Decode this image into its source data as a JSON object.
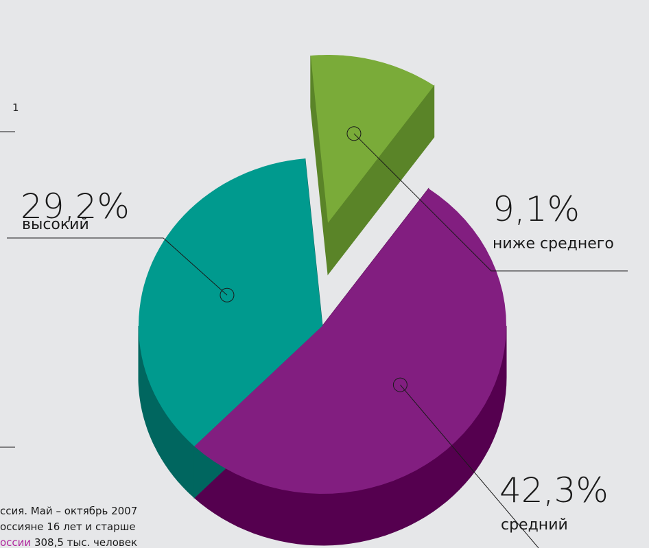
{
  "chart_data": {
    "type": "pie",
    "categories": [
      "высокий",
      "ниже среднего",
      "средний"
    ],
    "values": [
      29.2,
      9.1,
      42.3
    ],
    "value_labels": [
      "29,2%",
      "9,1%",
      "42,3%"
    ],
    "colors": [
      "#009a8e",
      "#7aab39",
      "#821e80"
    ],
    "side_colors": [
      "#00665f",
      "#5a8428",
      "#55004f"
    ],
    "exploded": [
      false,
      true,
      false
    ]
  },
  "fragments": {
    "top": "1",
    "notes": [
      "ссия. Май – октябрь 2007",
      "оссияне 16 лет и старше"
    ],
    "note_last": {
      "highlight": "оссии",
      "rest": "308,5 тыс. человек"
    }
  }
}
